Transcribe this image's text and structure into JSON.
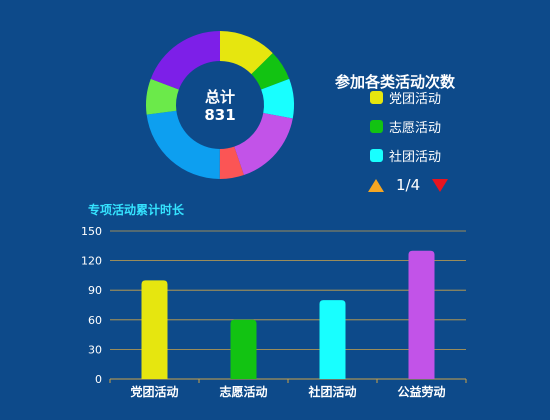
{
  "donut": {
    "center_label": "总计",
    "center_value": "831",
    "slices": [
      {
        "value": 105,
        "color": "#e6e60f"
      },
      {
        "value": 55,
        "color": "#12c312"
      },
      {
        "value": 72,
        "color": "#18ffff"
      },
      {
        "value": 140,
        "color": "#c253e8"
      },
      {
        "value": 44,
        "color": "#fb5555"
      },
      {
        "value": 190,
        "color": "#0d9ff0"
      },
      {
        "value": 65,
        "color": "#6bea4a"
      },
      {
        "value": 160,
        "color": "#7d1fe8"
      }
    ]
  },
  "legend": {
    "title": "参加各类活动次数",
    "items": [
      {
        "label": "党团活动",
        "color": "#e6e60f"
      },
      {
        "label": "志愿活动",
        "color": "#12c312"
      },
      {
        "label": "社团活动",
        "color": "#18ffff"
      }
    ],
    "pager_text": "1/4"
  },
  "chart_data": {
    "type": "bar",
    "title": "专项活动累计时长",
    "categories": [
      "党团活动",
      "志愿活动",
      "社团活动",
      "公益劳动"
    ],
    "values": [
      100,
      60,
      80,
      130
    ],
    "colors": [
      "#e6e60f",
      "#12c312",
      "#18ffff",
      "#c253e8"
    ],
    "ylim": [
      0,
      150
    ],
    "yticks": [
      0,
      30,
      60,
      90,
      120,
      150
    ],
    "grid": true,
    "grid_color": "#c9a24a"
  }
}
